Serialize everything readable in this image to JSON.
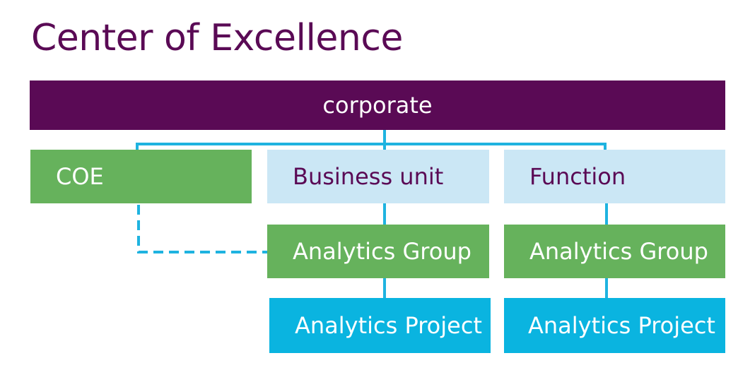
{
  "title": "Center of Excellence",
  "nodes": {
    "corporate": "corporate",
    "coe": "COE",
    "business_unit": "Business unit",
    "function": "Function",
    "analytics_group_bu": "Analytics Group",
    "analytics_group_fn": "Analytics Group",
    "analytics_project_bu": "Analytics Project",
    "analytics_project_fn": "Analytics Project"
  },
  "colors": {
    "title": "#5a0a55",
    "corporate": "#5a0a55",
    "coe": "#66b25c",
    "unit": "#cbe7f5",
    "group": "#66b25c",
    "project": "#0ab4e0",
    "connector": "#1fb3e0"
  },
  "edges": [
    {
      "from": "corporate",
      "to": "coe",
      "style": "solid"
    },
    {
      "from": "corporate",
      "to": "business_unit",
      "style": "solid"
    },
    {
      "from": "corporate",
      "to": "function",
      "style": "solid"
    },
    {
      "from": "business_unit",
      "to": "analytics_group_bu",
      "style": "solid"
    },
    {
      "from": "function",
      "to": "analytics_group_fn",
      "style": "solid"
    },
    {
      "from": "analytics_group_bu",
      "to": "analytics_project_bu",
      "style": "solid"
    },
    {
      "from": "analytics_group_fn",
      "to": "analytics_project_fn",
      "style": "solid"
    },
    {
      "from": "coe",
      "to": "analytics_group_bu",
      "style": "dashed"
    }
  ]
}
